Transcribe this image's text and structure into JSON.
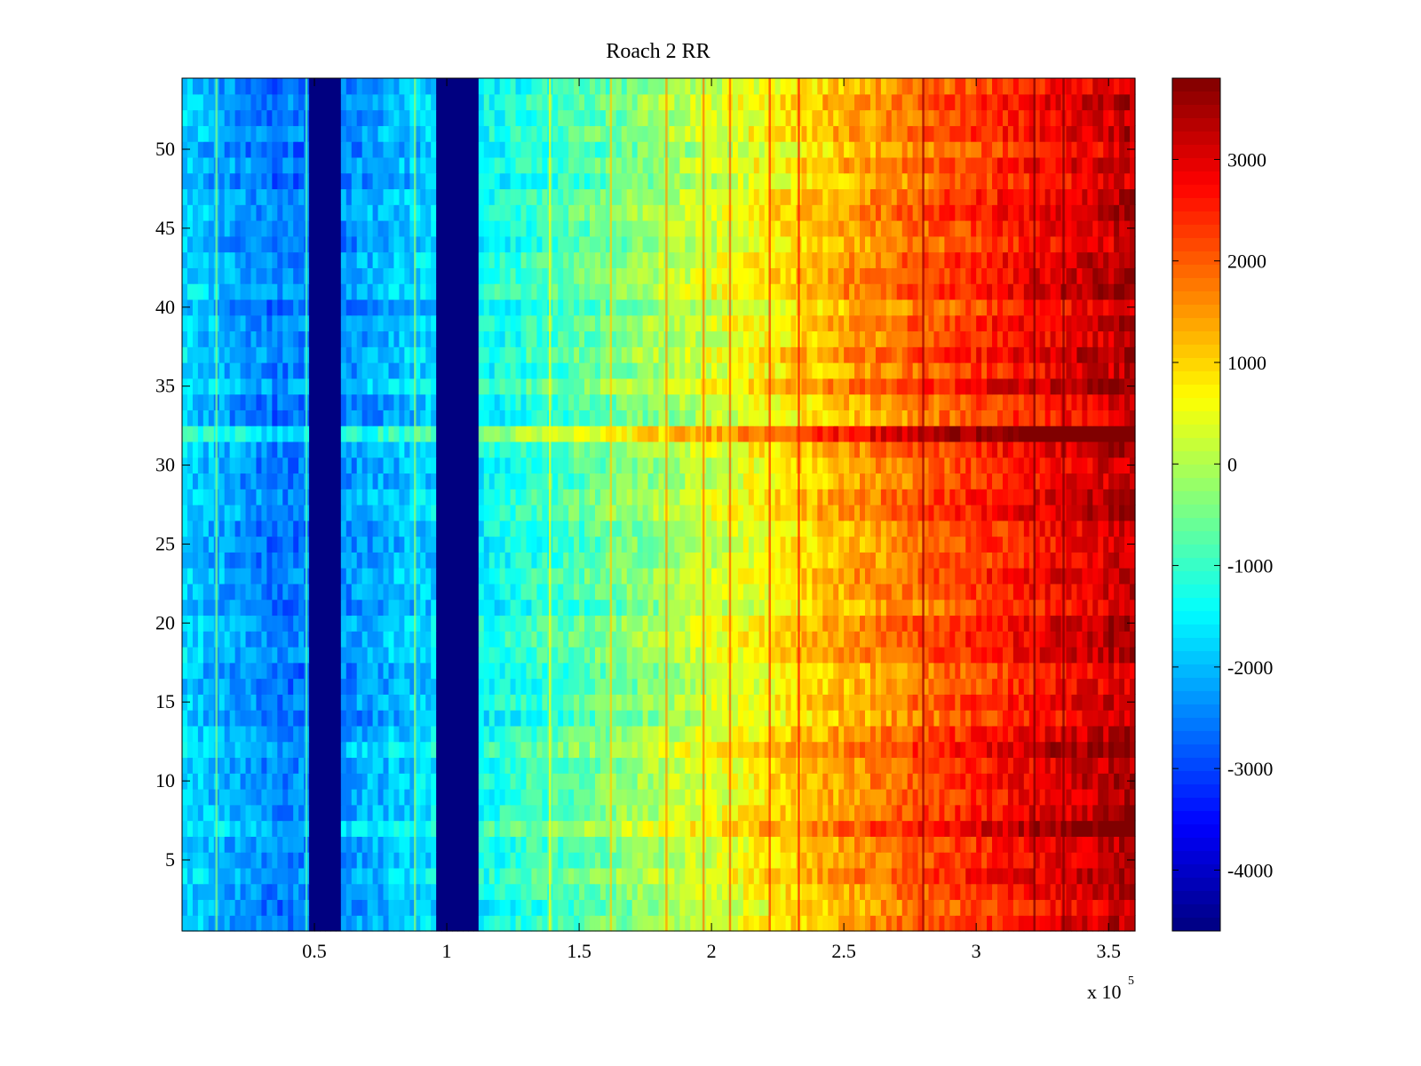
{
  "chart_data": {
    "type": "heatmap",
    "title": "Roach 2 RR",
    "xlabel": "",
    "ylabel": "",
    "x_multiplier_label": "x 10",
    "x_multiplier_exponent": "5",
    "xlim": [
      0,
      3.6
    ],
    "ylim": [
      0.5,
      54.5
    ],
    "rows": 54,
    "x_ticks": [
      {
        "value": 0.5,
        "label": "0.5"
      },
      {
        "value": 1,
        "label": "1"
      },
      {
        "value": 1.5,
        "label": "1.5"
      },
      {
        "value": 2,
        "label": "2"
      },
      {
        "value": 2.5,
        "label": "2.5"
      },
      {
        "value": 3,
        "label": "3"
      },
      {
        "value": 3.5,
        "label": "3.5"
      }
    ],
    "y_ticks": [
      {
        "value": 5,
        "label": "5"
      },
      {
        "value": 10,
        "label": "10"
      },
      {
        "value": 15,
        "label": "15"
      },
      {
        "value": 20,
        "label": "20"
      },
      {
        "value": 25,
        "label": "25"
      },
      {
        "value": 30,
        "label": "30"
      },
      {
        "value": 35,
        "label": "35"
      },
      {
        "value": 40,
        "label": "40"
      },
      {
        "value": 45,
        "label": "45"
      },
      {
        "value": 50,
        "label": "50"
      }
    ],
    "colorbar": {
      "colormap": "jet",
      "range": [
        -4600,
        3800
      ],
      "ticks": [
        {
          "value": 3000,
          "label": "3000"
        },
        {
          "value": 2000,
          "label": "2000"
        },
        {
          "value": 1000,
          "label": "1000"
        },
        {
          "value": 0,
          "label": "0"
        },
        {
          "value": -1000,
          "label": "-1000"
        },
        {
          "value": -2000,
          "label": "-2000"
        },
        {
          "value": -3000,
          "label": "-3000"
        },
        {
          "value": -4000,
          "label": "-4000"
        }
      ]
    },
    "gap_columns_x": [
      [
        0.48,
        0.6
      ],
      [
        0.97,
        1.12
      ]
    ],
    "gap_value": -4600,
    "row_trend": {
      "description": "value rises roughly linearly with x (units of 10^5)",
      "anchors": [
        {
          "x": 0.0,
          "value": -1800
        },
        {
          "x": 0.35,
          "value": -2600
        },
        {
          "x": 0.6,
          "value": -2400
        },
        {
          "x": 1.12,
          "value": -1500
        },
        {
          "x": 1.5,
          "value": -800
        },
        {
          "x": 2.0,
          "value": 200
        },
        {
          "x": 2.5,
          "value": 1300
        },
        {
          "x": 3.0,
          "value": 2300
        },
        {
          "x": 3.6,
          "value": 3300
        }
      ]
    },
    "highlight_rows": [
      {
        "row": 32,
        "offset": 1500
      },
      {
        "row": 7,
        "offset": 800
      },
      {
        "row": 12,
        "offset": 600
      },
      {
        "row": 35,
        "offset": 500
      },
      {
        "row": 41,
        "offset": 400
      }
    ],
    "vertical_streaks_x": [
      0.13,
      0.47,
      0.88,
      1.39,
      1.62,
      1.83,
      1.97,
      2.07,
      2.22,
      2.33,
      2.8,
      3.22,
      3.33
    ]
  },
  "colors": {
    "background": "#ffffff",
    "axis": "#000000",
    "gap": "#00008f"
  }
}
